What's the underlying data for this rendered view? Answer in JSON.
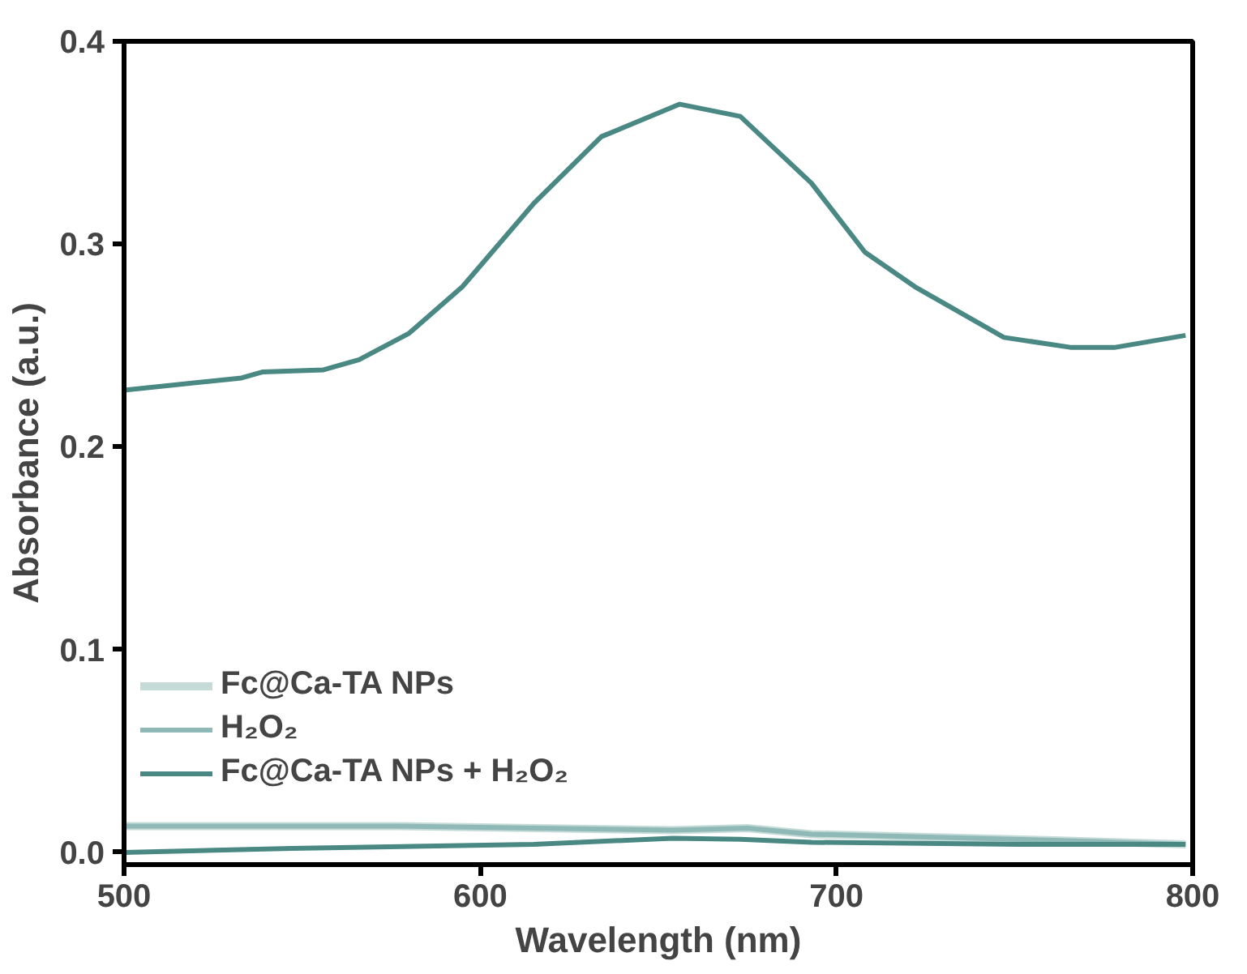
{
  "chart_data": {
    "type": "line",
    "xlabel": "Wavelength (nm)",
    "ylabel": "Absorbance (a.u.)",
    "xlim": [
      500,
      800
    ],
    "xticks": [
      500,
      600,
      700,
      800
    ],
    "ylim": [
      -0.006,
      0.4
    ],
    "yticks": [
      {
        "value": 0,
        "label": "0.0"
      },
      0.1,
      0.2,
      0.3,
      0.4
    ],
    "grid": false,
    "legend": "bottom left",
    "marker": "none",
    "line_style": "solid",
    "series": [
      {
        "name": "Fc@Ca-TA NPs",
        "color": "#c5dbd8",
        "x": [
          500,
          576,
          654,
          675,
          693,
          761,
          798
        ],
        "values": [
          0.013,
          0.013,
          0.011,
          0.012,
          0.009,
          0.006,
          0.004
        ]
      },
      {
        "name": "H₂O₂",
        "color": "#8fb9b6",
        "x": [
          500,
          576,
          654,
          675,
          693,
          761,
          798
        ],
        "values": [
          0.013,
          0.013,
          0.011,
          0.012,
          0.009,
          0.006,
          0.004
        ]
      },
      {
        "name": "Fc@Ca-TA NPs + H₂O₂",
        "color": "#4a8884",
        "x": [
          500,
          533,
          539,
          556,
          566,
          580,
          595,
          615,
          634,
          656,
          673,
          693,
          708,
          722,
          732,
          747,
          766,
          778,
          798
        ],
        "values": [
          0.228,
          0.234,
          0.237,
          0.238,
          0.243,
          0.256,
          0.279,
          0.32,
          0.353,
          0.369,
          0.363,
          0.33,
          0.296,
          0.279,
          0.269,
          0.254,
          0.249,
          0.249,
          0.255
        ]
      },
      {
        "name": null,
        "color": "#4a8884",
        "x": [
          500,
          547,
          615,
          654,
          673,
          693,
          751,
          798
        ],
        "values": [
          0.0,
          0.002,
          0.004,
          0.007,
          0.0065,
          0.005,
          0.004,
          0.004
        ]
      }
    ]
  }
}
